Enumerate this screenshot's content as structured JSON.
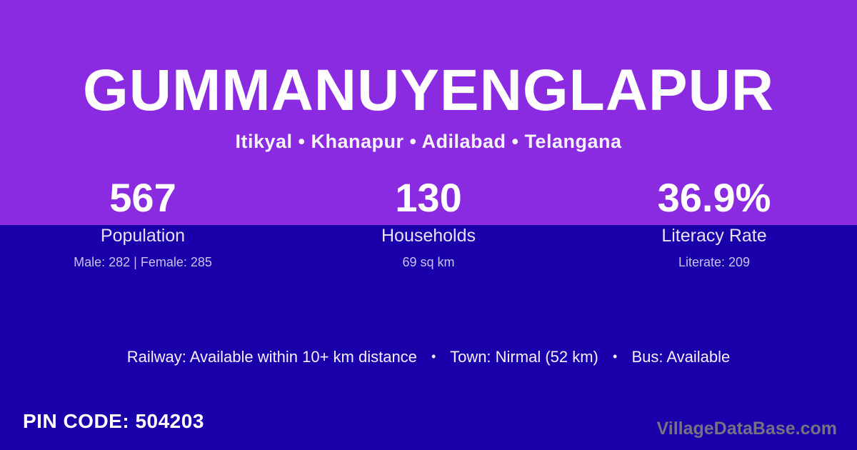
{
  "colors": {
    "top_background": "#8A2BE2",
    "bottom_background": "#1900AB",
    "text_primary": "#FFFFFF",
    "text_muted": "#C9C2EA",
    "watermark_gray": "#737381"
  },
  "header": {
    "title": "GUMMANUYENGLAPUR",
    "subtitle": "Itikyal • Khanapur • Adilabad • Telangana"
  },
  "stats": [
    {
      "value": "567",
      "label": "Population",
      "detail": "Male: 282 | Female: 285"
    },
    {
      "value": "130",
      "label": "Households",
      "detail": "69 sq km"
    },
    {
      "value": "36.9%",
      "label": "Literacy Rate",
      "detail": "Literate: 209"
    }
  ],
  "amenities": {
    "separator": "•",
    "items": [
      "Railway: Available within 10+ km distance",
      "Town: Nirmal (52 km)",
      "Bus: Available"
    ]
  },
  "footer": {
    "pin_code": "PIN CODE: 504203",
    "watermark": "VillageDataBase.com"
  }
}
